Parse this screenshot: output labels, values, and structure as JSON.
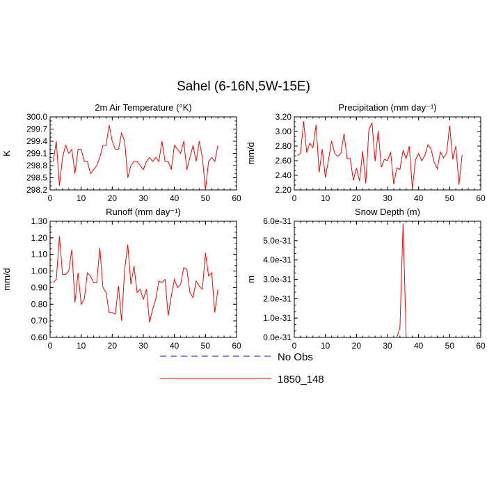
{
  "figure": {
    "title": "Sahel (6-16N,5W-15E)",
    "legend": [
      {
        "label": "No Obs",
        "color": "#0000ff",
        "dash": true
      },
      {
        "label": "1850_148",
        "color": "#ff0000",
        "dash": false
      }
    ]
  },
  "chart_data": [
    {
      "type": "line",
      "title": "2m Air Temperature (°K)",
      "ylabel": "K",
      "xlim": [
        0,
        60
      ],
      "ylim": [
        298.2,
        300.0
      ],
      "xticks": [
        "0",
        "10",
        "20",
        "30",
        "40",
        "50",
        "60"
      ],
      "yticks": [
        "298.2",
        "298.5",
        "298.8",
        "299.1",
        "299.4",
        "299.7",
        "300.0"
      ],
      "series": [
        {
          "color": "#ff0000",
          "x": [
            1,
            2,
            3,
            4,
            5,
            6,
            7,
            8,
            9,
            10,
            11,
            12,
            13,
            14,
            15,
            16,
            17,
            18,
            19,
            20,
            21,
            22,
            23,
            24,
            25,
            26,
            27,
            28,
            29,
            30,
            31,
            32,
            33,
            34,
            35,
            36,
            37,
            38,
            39,
            40,
            41,
            42,
            43,
            44,
            45,
            46,
            47,
            48,
            49,
            50,
            51,
            52,
            53,
            54
          ],
          "y": [
            298.9,
            299.4,
            298.3,
            299.0,
            299.3,
            299.1,
            299.2,
            298.6,
            299.2,
            299.2,
            298.9,
            298.9,
            298.6,
            298.7,
            298.8,
            299.0,
            299.3,
            299.3,
            299.8,
            299.4,
            299.2,
            299.2,
            299.6,
            299.4,
            298.5,
            298.8,
            298.9,
            298.9,
            298.8,
            298.7,
            298.9,
            299.0,
            298.9,
            299.0,
            298.9,
            299.4,
            298.9,
            298.9,
            298.7,
            299.3,
            299.2,
            299.1,
            299.4,
            298.7,
            299.0,
            299.3,
            298.9,
            299.4,
            299.0,
            298.2,
            298.9,
            299.0,
            298.9,
            299.3
          ]
        }
      ]
    },
    {
      "type": "line",
      "title": "Precipitation (mm day⁻¹)",
      "ylabel": "mm/d",
      "xlim": [
        0,
        60
      ],
      "ylim": [
        2.2,
        3.2
      ],
      "xticks": [
        "0",
        "10",
        "20",
        "30",
        "40",
        "50",
        "60"
      ],
      "yticks": [
        "2.20",
        "2.40",
        "2.60",
        "2.80",
        "3.00",
        "3.20"
      ],
      "series": [
        {
          "color": "#ff0000",
          "x": [
            1,
            2,
            3,
            4,
            5,
            6,
            7,
            8,
            9,
            10,
            11,
            12,
            13,
            14,
            15,
            16,
            17,
            18,
            19,
            20,
            21,
            22,
            23,
            24,
            25,
            26,
            27,
            28,
            29,
            30,
            31,
            32,
            33,
            34,
            35,
            36,
            37,
            38,
            39,
            40,
            41,
            42,
            43,
            44,
            45,
            46,
            47,
            48,
            49,
            50,
            51,
            52,
            53,
            54
          ],
          "y": [
            2.67,
            2.7,
            3.14,
            2.71,
            2.84,
            2.78,
            3.09,
            2.44,
            2.76,
            2.37,
            2.61,
            2.87,
            2.7,
            2.66,
            2.7,
            2.97,
            2.63,
            2.63,
            2.33,
            2.5,
            2.32,
            2.73,
            2.29,
            3.02,
            3.12,
            2.59,
            3.01,
            2.51,
            2.62,
            2.6,
            2.72,
            2.28,
            2.5,
            2.48,
            2.74,
            2.63,
            2.8,
            2.22,
            2.61,
            2.7,
            2.6,
            2.67,
            2.82,
            2.76,
            2.58,
            2.49,
            2.72,
            2.64,
            2.7,
            3.08,
            2.62,
            2.8,
            2.27,
            2.68
          ]
        }
      ]
    },
    {
      "type": "line",
      "title": "Runoff (mm day⁻¹)",
      "ylabel": "mm/d",
      "xlim": [
        0,
        60
      ],
      "ylim": [
        0.6,
        1.3
      ],
      "xticks": [
        "0",
        "10",
        "20",
        "30",
        "40",
        "50",
        "60"
      ],
      "yticks": [
        "0.60",
        "0.70",
        "0.80",
        "0.90",
        "1.00",
        "1.10",
        "1.20",
        "1.30"
      ],
      "series": [
        {
          "color": "#ff0000",
          "x": [
            1,
            2,
            3,
            4,
            5,
            6,
            7,
            8,
            9,
            10,
            11,
            12,
            13,
            14,
            15,
            16,
            17,
            18,
            19,
            20,
            21,
            22,
            23,
            24,
            25,
            26,
            27,
            28,
            29,
            30,
            31,
            32,
            33,
            34,
            35,
            36,
            37,
            38,
            39,
            40,
            41,
            42,
            43,
            44,
            45,
            46,
            47,
            48,
            49,
            50,
            51,
            52,
            53,
            54
          ],
          "y": [
            0.93,
            0.95,
            1.21,
            0.98,
            0.98,
            1.0,
            1.13,
            0.81,
            0.99,
            0.8,
            0.83,
            0.99,
            0.97,
            0.93,
            0.93,
            1.14,
            0.9,
            0.87,
            0.75,
            0.75,
            0.74,
            0.91,
            0.7,
            1.01,
            1.16,
            0.92,
            1.03,
            0.87,
            0.89,
            0.83,
            0.89,
            0.69,
            0.77,
            0.83,
            0.94,
            0.93,
            0.95,
            0.73,
            0.85,
            0.95,
            0.9,
            0.92,
            1.02,
            1.01,
            0.87,
            0.84,
            0.94,
            0.91,
            0.89,
            1.11,
            0.97,
            0.99,
            0.75,
            0.89
          ]
        }
      ]
    },
    {
      "type": "line",
      "title": "Snow Depth (m)",
      "ylabel": "m",
      "xlim": [
        0,
        60
      ],
      "ylim": [
        0,
        6e-31
      ],
      "xticks": [
        "0",
        "10",
        "20",
        "30",
        "40",
        "50",
        "60"
      ],
      "yticks": [
        "0.0e-31",
        "1.0e-31",
        "2.0e-31",
        "3.0e-31",
        "4.0e-31",
        "5.0e-31",
        "6.0e-31"
      ],
      "series": [
        {
          "color": "#ff0000",
          "x": [
            33,
            34,
            35,
            36
          ],
          "y": [
            0,
            5e-32,
            5.9e-31,
            0
          ]
        }
      ]
    }
  ]
}
